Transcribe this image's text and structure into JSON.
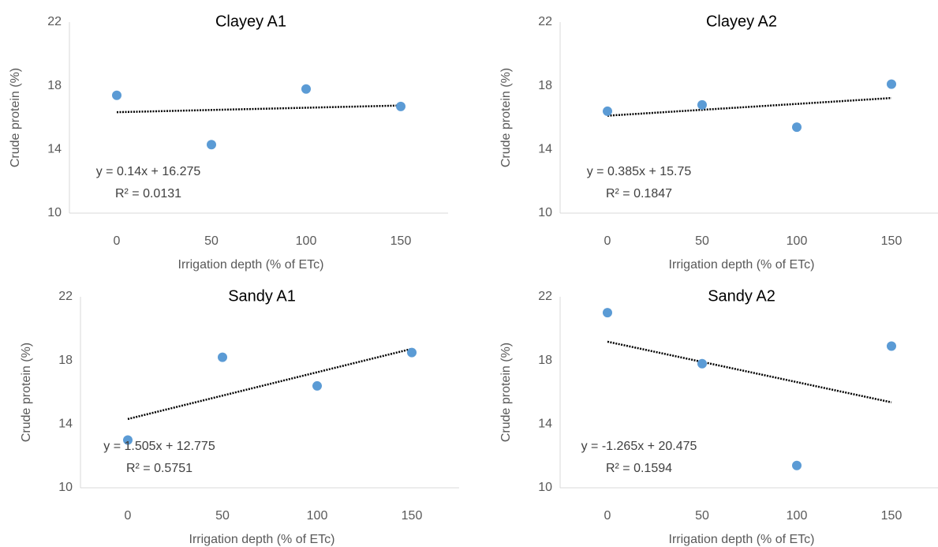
{
  "chart_data": [
    {
      "type": "scatter",
      "title": "Clayey A1",
      "x_label": "Irrigation depth (% of ETc)",
      "y_label": "Crude protein (%)",
      "x": [
        0,
        50,
        100,
        150
      ],
      "values": [
        17.4,
        14.3,
        17.8,
        16.7
      ],
      "color": "#5b9bd5",
      "trendline": true,
      "annotations": [
        "y = 0.14x + 16.275",
        "R² = 0.0131"
      ],
      "xlim": [
        -25,
        175
      ],
      "xticks": [
        0,
        50,
        100,
        150
      ],
      "ylim": [
        10,
        22
      ],
      "yticks": [
        10,
        14,
        18,
        22
      ]
    },
    {
      "type": "scatter",
      "title": "Clayey A2",
      "x_label": "Irrigation depth (% of ETc)",
      "y_label": "Crude protein (%)",
      "x": [
        0,
        50,
        100,
        150
      ],
      "values": [
        16.4,
        16.8,
        15.4,
        18.1
      ],
      "color": "#5b9bd5",
      "trendline": true,
      "annotations": [
        "y = 0.385x + 15.75",
        "R² = 0.1847"
      ],
      "xlim": [
        -25,
        175
      ],
      "xticks": [
        0,
        50,
        100,
        150
      ],
      "ylim": [
        10,
        22
      ],
      "yticks": [
        10,
        14,
        18,
        22
      ]
    },
    {
      "type": "scatter",
      "title": "Sandy A1",
      "x_label": "Irrigation depth (% of ETc)",
      "y_label": "Crude protein (%)",
      "x": [
        0,
        50,
        100,
        150
      ],
      "values": [
        13.0,
        18.2,
        16.4,
        18.5
      ],
      "color": "#5b9bd5",
      "trendline": true,
      "annotations": [
        "y = 1.505x + 12.775",
        "R² = 0.5751"
      ],
      "xlim": [
        -25,
        175
      ],
      "xticks": [
        0,
        50,
        100,
        150
      ],
      "ylim": [
        10,
        22
      ],
      "yticks": [
        10,
        14,
        18,
        22
      ]
    },
    {
      "type": "scatter",
      "title": "Sandy A2",
      "x_label": "Irrigation depth (% of ETc)",
      "y_label": "Crude protein (%)",
      "x": [
        0,
        50,
        100,
        150
      ],
      "values": [
        21.0,
        17.8,
        11.4,
        18.9
      ],
      "color": "#5b9bd5",
      "trendline": true,
      "annotations": [
        "y = -1.265x + 20.475",
        "R² = 0.1594"
      ],
      "xlim": [
        -25,
        175
      ],
      "xticks": [
        0,
        50,
        100,
        150
      ],
      "ylim": [
        10,
        22
      ],
      "yticks": [
        10,
        14,
        18,
        22
      ]
    }
  ]
}
